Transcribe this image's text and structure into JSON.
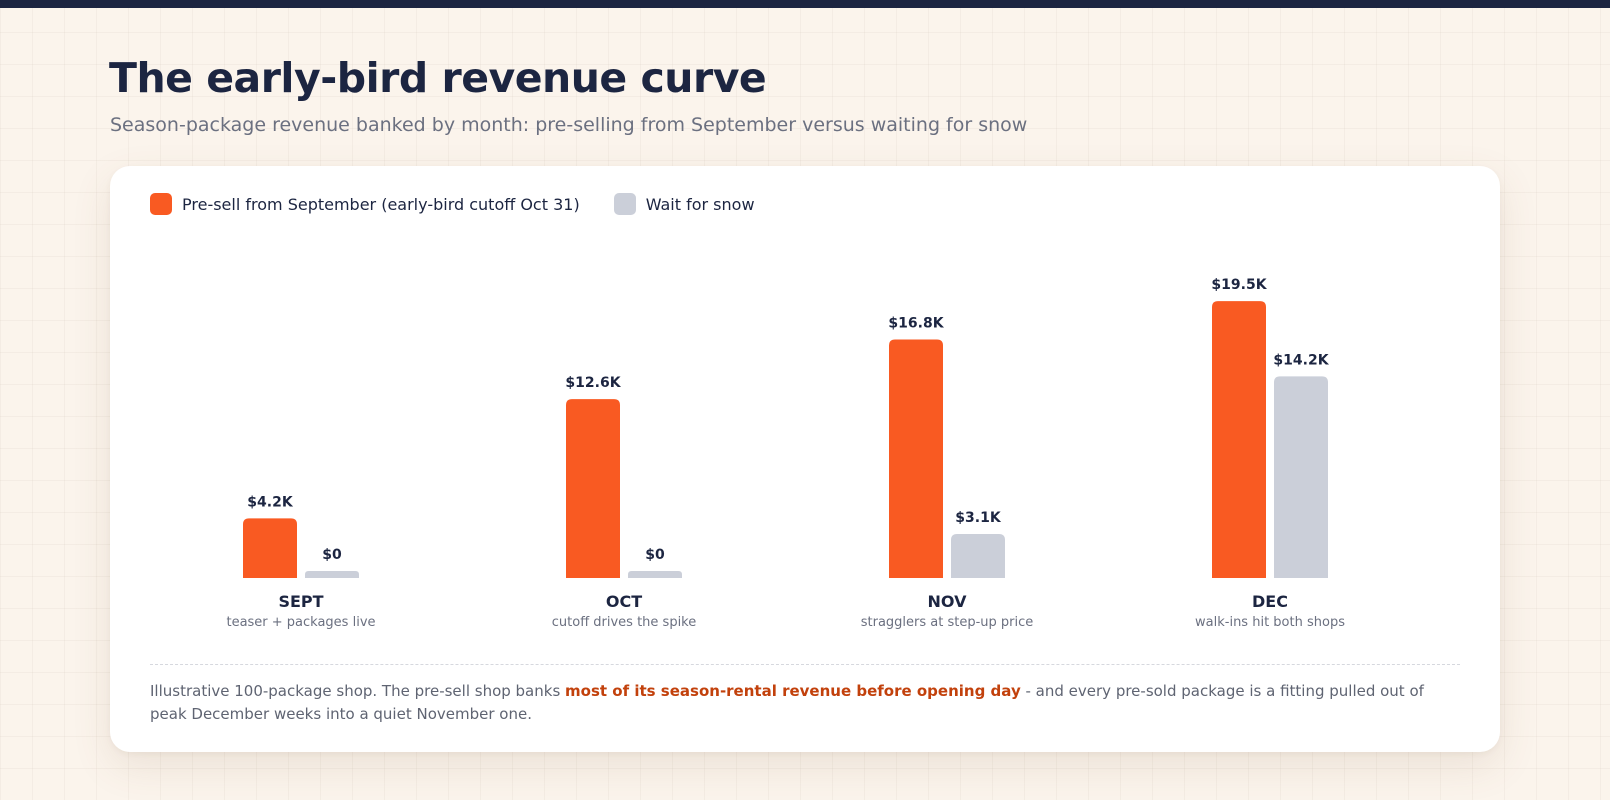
{
  "header": {
    "title": "The early-bird revenue curve",
    "subtitle": "Season-package revenue banked by month: pre-selling from September versus waiting for snow"
  },
  "colors": {
    "presell": "#f95a22",
    "wait": "#cbcfd9",
    "ink": "#1c2541",
    "muted": "#6b7080",
    "highlight": "#c2410c"
  },
  "chart_data": {
    "type": "bar",
    "categories": [
      "SEPT",
      "OCT",
      "NOV",
      "DEC"
    ],
    "category_notes": [
      "teaser + packages live",
      "cutoff drives the spike",
      "stragglers at step-up price",
      "walk-ins hit both shops"
    ],
    "series": [
      {
        "name": "Pre-sell from September (early-bird cutoff Oct 31)",
        "values": [
          4.2,
          12.6,
          16.8,
          19.5
        ],
        "labels": [
          "$4.2K",
          "$12.6K",
          "$16.8K",
          "$19.5K"
        ]
      },
      {
        "name": "Wait for snow",
        "values": [
          0,
          0,
          3.1,
          14.2
        ],
        "labels": [
          "$0",
          "$0",
          "$3.1K",
          "$14.2K"
        ]
      }
    ],
    "units": "$K",
    "ylim": [
      0,
      20
    ],
    "grid": false,
    "legend_position": "top-left"
  },
  "footnote": {
    "before": "Illustrative 100-package shop. The pre-sell shop banks ",
    "highlight": "most of its season-rental revenue before opening day",
    "after": " - and every pre-sold package is a fitting pulled out of peak December weeks into a quiet November one."
  }
}
